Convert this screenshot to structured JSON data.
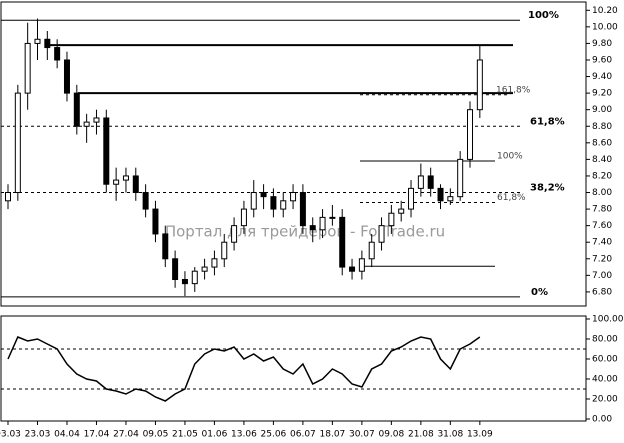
{
  "chart_data": {
    "type": "candlestick",
    "watermark": "Портал для трейдеров - ForTrade.ru",
    "categories": [
      "03.03",
      null,
      null,
      "23.03",
      null,
      null,
      "04.04",
      null,
      null,
      "17.04",
      null,
      null,
      "27.04",
      null,
      null,
      "09.05",
      null,
      null,
      "21.05",
      null,
      null,
      "01.06",
      null,
      null,
      "13.06",
      null,
      null,
      "25.06",
      null,
      null,
      "06.07",
      null,
      null,
      "18.07",
      null,
      null,
      "30.07",
      null,
      null,
      "09.08",
      null,
      null,
      "21.08",
      null,
      null,
      "31.08",
      null,
      null,
      "13.09"
    ],
    "open": [
      7.9,
      8.0,
      9.2,
      9.8,
      9.85,
      9.75,
      9.6,
      9.2,
      8.8,
      8.85,
      8.9,
      8.1,
      8.15,
      8.2,
      8.0,
      7.8,
      7.5,
      7.2,
      6.95,
      6.9,
      7.05,
      7.1,
      7.2,
      7.4,
      7.6,
      7.8,
      8.0,
      7.95,
      7.8,
      7.9,
      8.0,
      7.6,
      7.55,
      7.7,
      7.7,
      7.1,
      7.05,
      7.2,
      7.4,
      7.6,
      7.75,
      7.8,
      8.05,
      8.2,
      8.05,
      7.9,
      7.95,
      8.4,
      9.0
    ],
    "high": [
      8.1,
      9.3,
      10.05,
      10.1,
      9.95,
      9.85,
      9.7,
      9.3,
      8.95,
      9.0,
      9.0,
      8.3,
      8.3,
      8.3,
      8.1,
      7.9,
      7.6,
      7.3,
      7.05,
      7.1,
      7.2,
      7.3,
      7.5,
      7.7,
      7.9,
      8.15,
      8.1,
      8.05,
      8.0,
      8.1,
      8.1,
      7.7,
      7.8,
      7.85,
      7.8,
      7.2,
      7.3,
      7.5,
      7.7,
      7.85,
      7.9,
      8.15,
      8.35,
      8.3,
      8.1,
      8.05,
      8.5,
      9.1,
      9.78
    ],
    "low": [
      7.8,
      7.9,
      9.0,
      9.6,
      9.6,
      9.5,
      9.1,
      8.7,
      8.6,
      8.7,
      8.0,
      7.9,
      8.0,
      7.9,
      7.7,
      7.4,
      7.1,
      6.85,
      6.75,
      6.8,
      6.95,
      7.0,
      7.1,
      7.3,
      7.5,
      7.7,
      7.8,
      7.7,
      7.7,
      7.8,
      7.5,
      7.4,
      7.45,
      7.6,
      7.0,
      6.95,
      6.95,
      7.1,
      7.3,
      7.5,
      7.65,
      7.7,
      7.95,
      7.95,
      7.8,
      7.85,
      7.9,
      8.3,
      8.9
    ],
    "close": [
      8.0,
      9.2,
      9.8,
      9.85,
      9.75,
      9.6,
      9.2,
      8.8,
      8.85,
      8.9,
      8.1,
      8.15,
      8.2,
      8.0,
      7.8,
      7.5,
      7.2,
      6.95,
      6.9,
      7.05,
      7.1,
      7.2,
      7.4,
      7.6,
      7.8,
      8.0,
      7.95,
      7.8,
      7.9,
      8.0,
      7.6,
      7.55,
      7.7,
      7.7,
      7.1,
      7.05,
      7.2,
      7.4,
      7.6,
      7.75,
      7.8,
      8.05,
      8.2,
      8.05,
      7.9,
      7.95,
      8.4,
      9.0,
      9.6
    ],
    "ylim": [
      6.63,
      10.3
    ],
    "yticks": [
      {
        "value": 6.8,
        "label": "6.80"
      },
      {
        "value": 7.0,
        "label": "7.00"
      },
      {
        "value": 7.2,
        "label": "7.20"
      },
      {
        "value": 7.4,
        "label": "7.40"
      },
      {
        "value": 7.6,
        "label": "7.60"
      },
      {
        "value": 7.8,
        "label": "7.80"
      },
      {
        "value": 8.0,
        "label": "8.00"
      },
      {
        "value": 8.2,
        "label": "8.20"
      },
      {
        "value": 8.4,
        "label": "8.40"
      },
      {
        "value": 8.6,
        "label": "8.60"
      },
      {
        "value": 8.8,
        "label": "8.80"
      },
      {
        "value": 9.0,
        "label": "9.00"
      },
      {
        "value": 9.2,
        "label": "9.20"
      },
      {
        "value": 9.4,
        "label": "9.40"
      },
      {
        "value": 9.6,
        "label": "9.60"
      },
      {
        "value": 9.8,
        "label": "9.80"
      },
      {
        "value": 10.0,
        "label": "10.00"
      },
      {
        "value": 10.2,
        "label": "10.20"
      }
    ],
    "levels": [
      {
        "value": 10.08,
        "label": "100%",
        "style": "solid"
      },
      {
        "value": 9.78,
        "style": "thick"
      },
      {
        "value": 9.2,
        "style": "thick"
      },
      {
        "value": 8.8,
        "label": "61,8%",
        "style": "dashed"
      },
      {
        "value": 8.0,
        "label": "38,2%",
        "style": "dashed"
      },
      {
        "value": 6.74,
        "label": "0%",
        "style": "solid"
      },
      {
        "value": 9.18,
        "label": "161,8%",
        "style": "dashed-small"
      },
      {
        "value": 8.38,
        "label": "100%",
        "style": "solid-small"
      },
      {
        "value": 7.88,
        "label": "61,8%",
        "style": "dashed-small"
      },
      {
        "value": 7.11,
        "style": "solid-small"
      }
    ],
    "oscillator": {
      "values": [
        60,
        82,
        78,
        80,
        75,
        70,
        55,
        45,
        40,
        38,
        30,
        28,
        25,
        30,
        28,
        22,
        18,
        25,
        30,
        55,
        65,
        70,
        68,
        72,
        60,
        65,
        58,
        62,
        50,
        45,
        55,
        35,
        40,
        50,
        45,
        35,
        32,
        50,
        55,
        68,
        72,
        78,
        82,
        80,
        60,
        50,
        70,
        75,
        82
      ],
      "ylim": [
        -2,
        103
      ],
      "yticks": [
        {
          "value": 0,
          "label": "0.00"
        },
        {
          "value": 20,
          "label": "20.00"
        },
        {
          "value": 40,
          "label": "40.00"
        },
        {
          "value": 60,
          "label": "60.00"
        },
        {
          "value": 80,
          "label": "80.00"
        },
        {
          "value": 100,
          "label": "100.00"
        }
      ],
      "levels": [
        70,
        30
      ]
    }
  }
}
